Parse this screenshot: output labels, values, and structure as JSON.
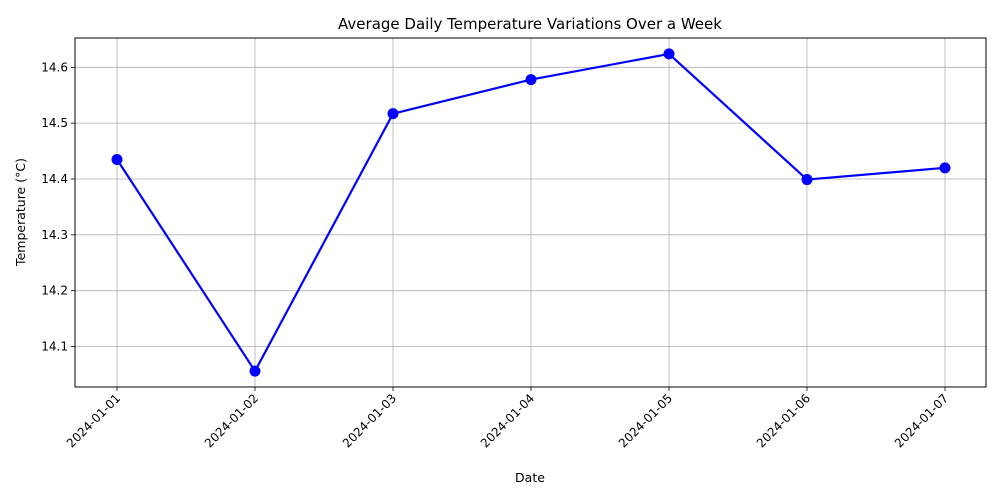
{
  "chart_data": {
    "type": "line",
    "title": "Average Daily Temperature Variations Over a Week",
    "xlabel": "Date",
    "ylabel": "Temperature (°C)",
    "categories": [
      "2024-01-01",
      "2024-01-02",
      "2024-01-03",
      "2024-01-04",
      "2024-01-05",
      "2024-01-06",
      "2024-01-07"
    ],
    "series": [
      {
        "values": [
          14.435,
          14.056,
          14.517,
          14.578,
          14.624,
          14.399,
          14.42
        ],
        "color": "#0000ff",
        "marker": "circle"
      }
    ],
    "yticks": [
      "14.1",
      "14.2",
      "14.3",
      "14.4",
      "14.5",
      "14.6"
    ],
    "ylim": [
      14.0275,
      14.6525
    ],
    "grid": true,
    "legend": "none"
  }
}
